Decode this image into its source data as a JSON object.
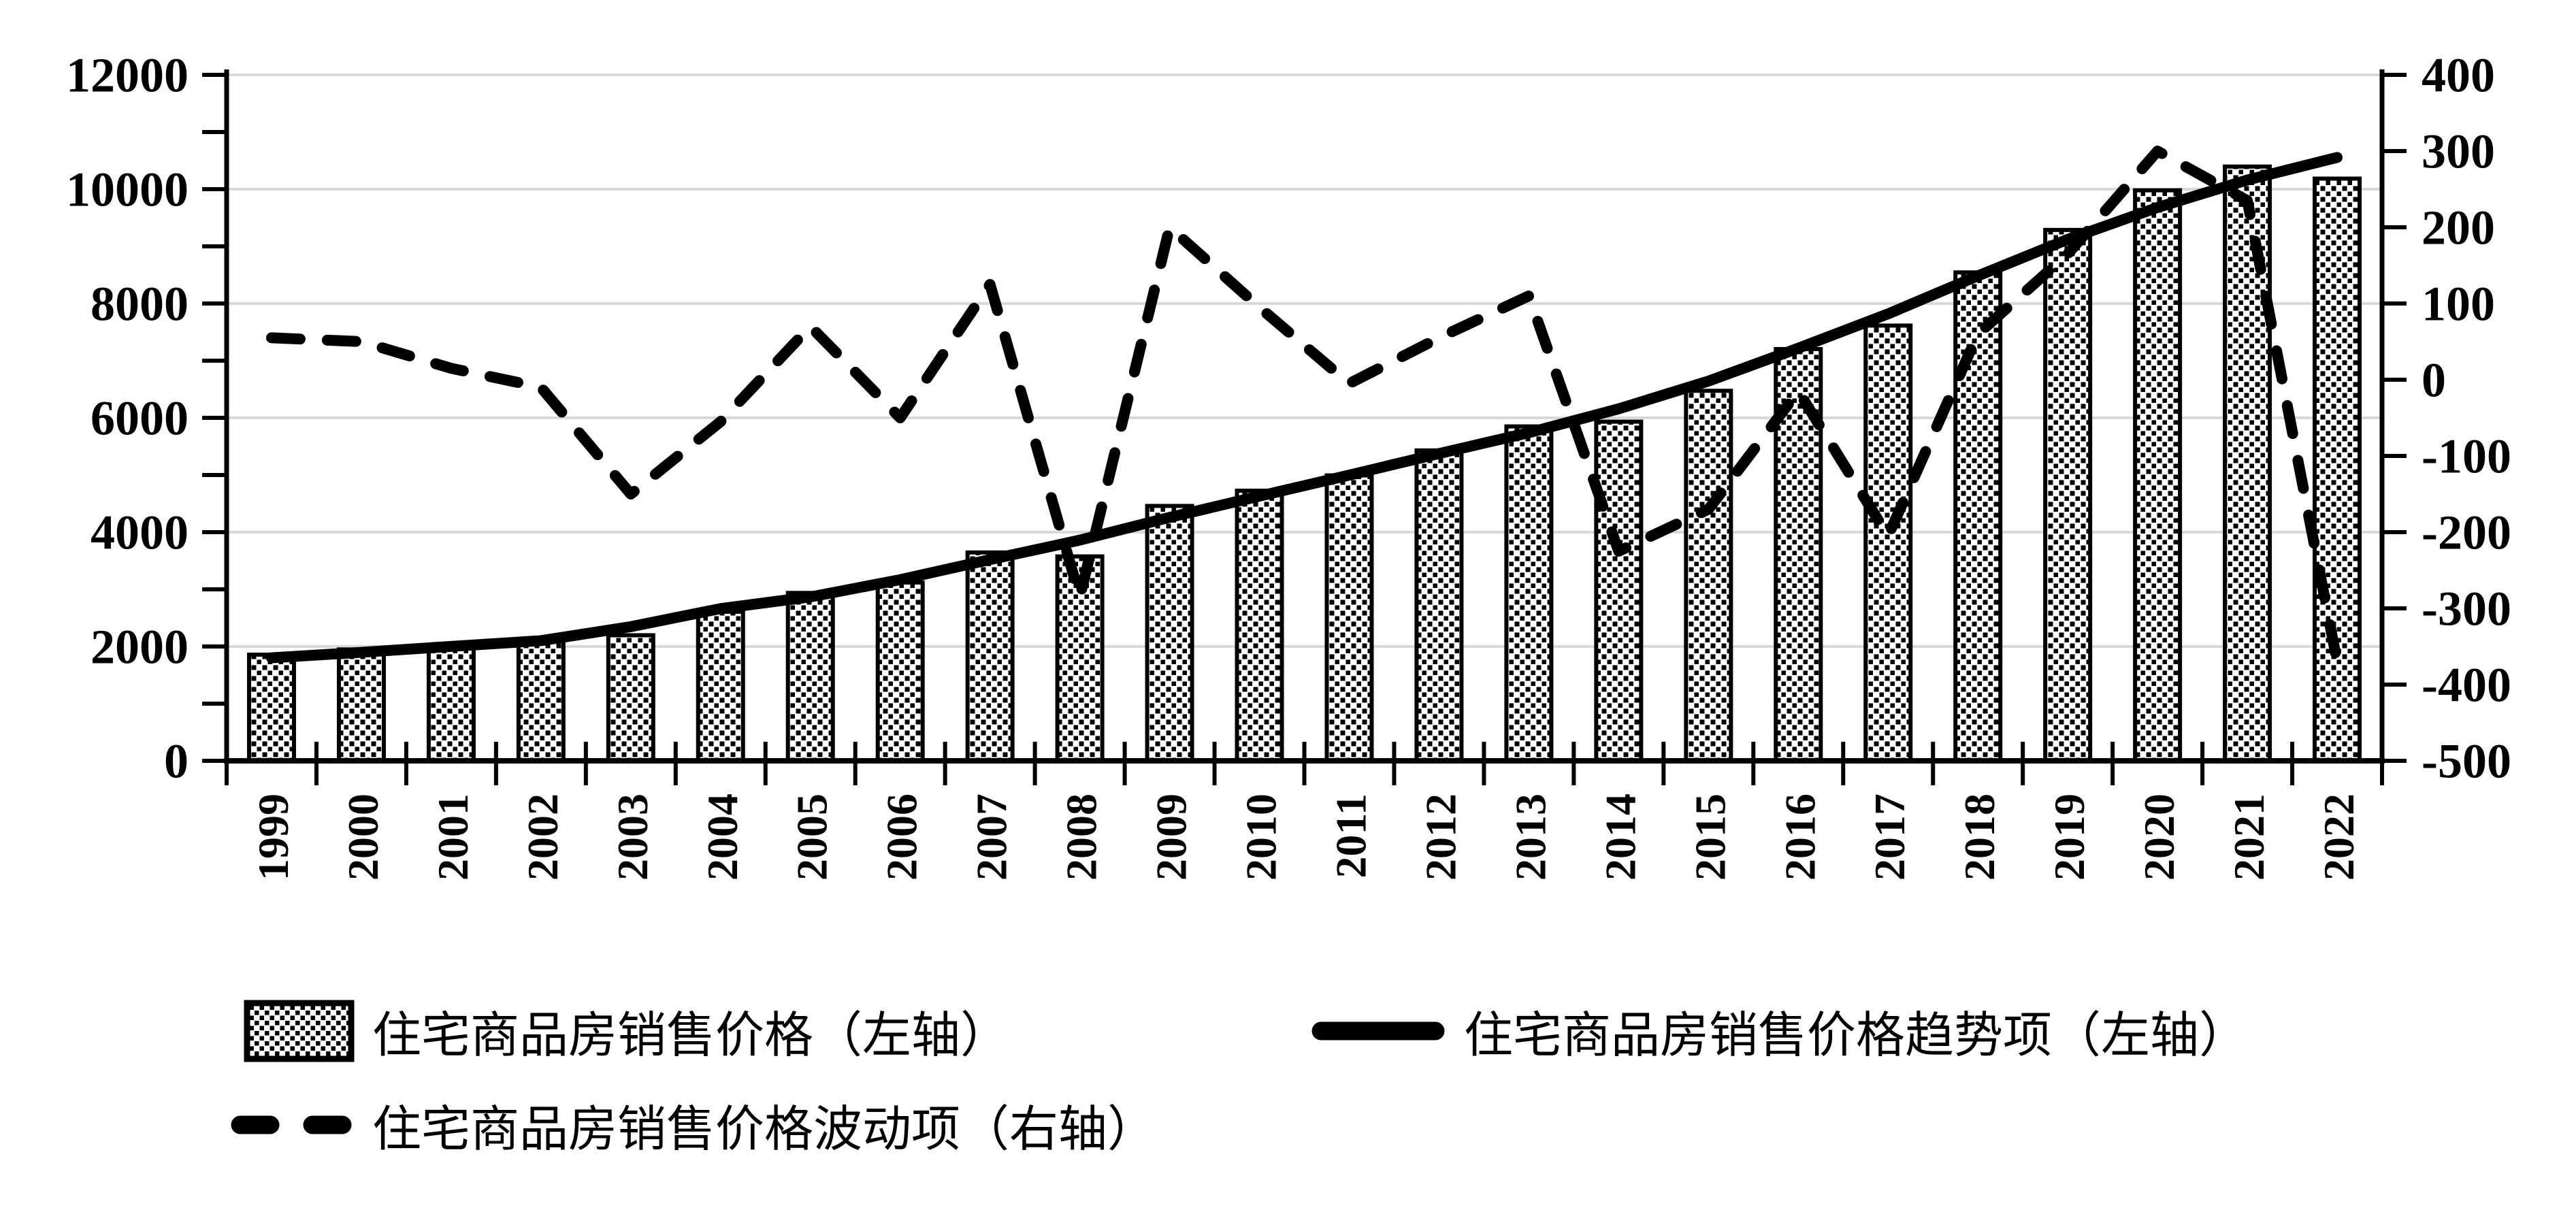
{
  "chart_data": {
    "type": "bar+line combo, dual axis",
    "title": "",
    "categories": [
      "1999",
      "2000",
      "2001",
      "2002",
      "2003",
      "2004",
      "2005",
      "2006",
      "2007",
      "2008",
      "2009",
      "2010",
      "2011",
      "2012",
      "2013",
      "2014",
      "2015",
      "2016",
      "2017",
      "2018",
      "2019",
      "2020",
      "2021",
      "2022"
    ],
    "series": [
      {
        "name": "住宅商品房销售价格（左轴）",
        "type": "bar",
        "axis": "left",
        "values": [
          1857,
          1948,
          2017,
          2092,
          2197,
          2608,
          2937,
          3119,
          3645,
          3576,
          4459,
          4725,
          4993,
          5430,
          5850,
          5933,
          6473,
          7203,
          7614,
          8544,
          9287,
          9980,
          10396,
          10185
        ]
      },
      {
        "name": "住宅商品房销售价格趋势项（左轴）",
        "type": "line",
        "style": "solid",
        "axis": "left",
        "values": [
          1802,
          1898,
          2002,
          2102,
          2347,
          2663,
          2867,
          3169,
          3520,
          3861,
          4259,
          4630,
          4998,
          5375,
          5740,
          6158,
          6643,
          7218,
          7819,
          8484,
          9122,
          9680,
          10161,
          10555
        ]
      },
      {
        "name": "住宅商品房销售价格波动项（右轴）",
        "type": "line",
        "style": "dashed",
        "axis": "right",
        "values": [
          55,
          50,
          15,
          -10,
          -150,
          -55,
          70,
          -50,
          125,
          -285,
          200,
          95,
          -5,
          55,
          110,
          -225,
          -170,
          -15,
          -205,
          60,
          165,
          300,
          235,
          -370
        ]
      }
    ],
    "left_axis": {
      "min": 0,
      "max": 12000,
      "labels": [
        "12000",
        "10000",
        "8000",
        "6000",
        "4000",
        "2000",
        "0"
      ],
      "label_step": 2000,
      "minor_tick_step": 1000
    },
    "right_axis": {
      "min": -500,
      "max": 400,
      "labels": [
        "400",
        "300",
        "200",
        "100",
        "0",
        "-100",
        "-200",
        "-300",
        "-400",
        "-500"
      ],
      "label_step": 100,
      "tick_step": 100
    },
    "legend": {
      "position": "bottom-left",
      "rows": 2
    },
    "grid": true,
    "colors": {
      "foreground": "#000000",
      "gridline": "#d9d9d9",
      "background": "#ffffff"
    }
  }
}
